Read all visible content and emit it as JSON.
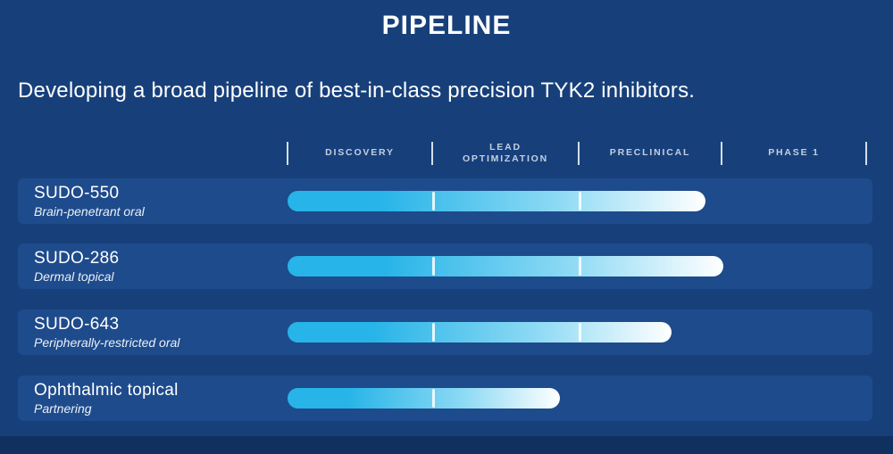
{
  "slide": {
    "title": "PIPELINE",
    "subtitle": "Developing a broad pipeline of best-in-class precision TYK2 inhibitors."
  },
  "chart_data": {
    "type": "bar",
    "orientation": "horizontal",
    "title": "PIPELINE",
    "categories": [
      "DISCOVERY",
      "LEAD OPTIMIZATION",
      "PRECLINICAL",
      "PHASE 1"
    ],
    "axis_note": "Progress in stage units: 0 = start of Discovery, 4 = end of Phase 1",
    "rows": [
      {
        "name": "SUDO-550",
        "description": "Brain-penetrant oral",
        "stage_reached": "Preclinical",
        "stage_units": 2.9,
        "progress_pct_of_track": 72.2,
        "separators_track_pct": [
          25,
          50.3
        ]
      },
      {
        "name": "SUDO-286",
        "description": "Dermal topical",
        "stage_reached": "Preclinical",
        "stage_units": 3.0,
        "progress_pct_of_track": 75.3,
        "separators_track_pct": [
          25,
          50.3
        ]
      },
      {
        "name": "SUDO-643",
        "description": "Peripherally-restricted oral",
        "stage_reached": "Preclinical",
        "stage_units": 2.65,
        "progress_pct_of_track": 66.4,
        "separators_track_pct": [
          25,
          50.3
        ]
      },
      {
        "name": "Ophthalmic topical",
        "description": "Partnering",
        "stage_reached": "Lead Optimization",
        "stage_units": 1.9,
        "progress_pct_of_track": 47.1,
        "separators_track_pct": [
          25
        ]
      }
    ]
  },
  "colors": {
    "background": "#17407b",
    "row_band": "#1e4b8c",
    "bar_start": "#27b4e8",
    "bar_mid": "#8edaf4",
    "bar_end": "#ffffff",
    "stage_text": "#c3cfe2",
    "tick": "#e9eef6",
    "footer_strip": "#10305f"
  }
}
